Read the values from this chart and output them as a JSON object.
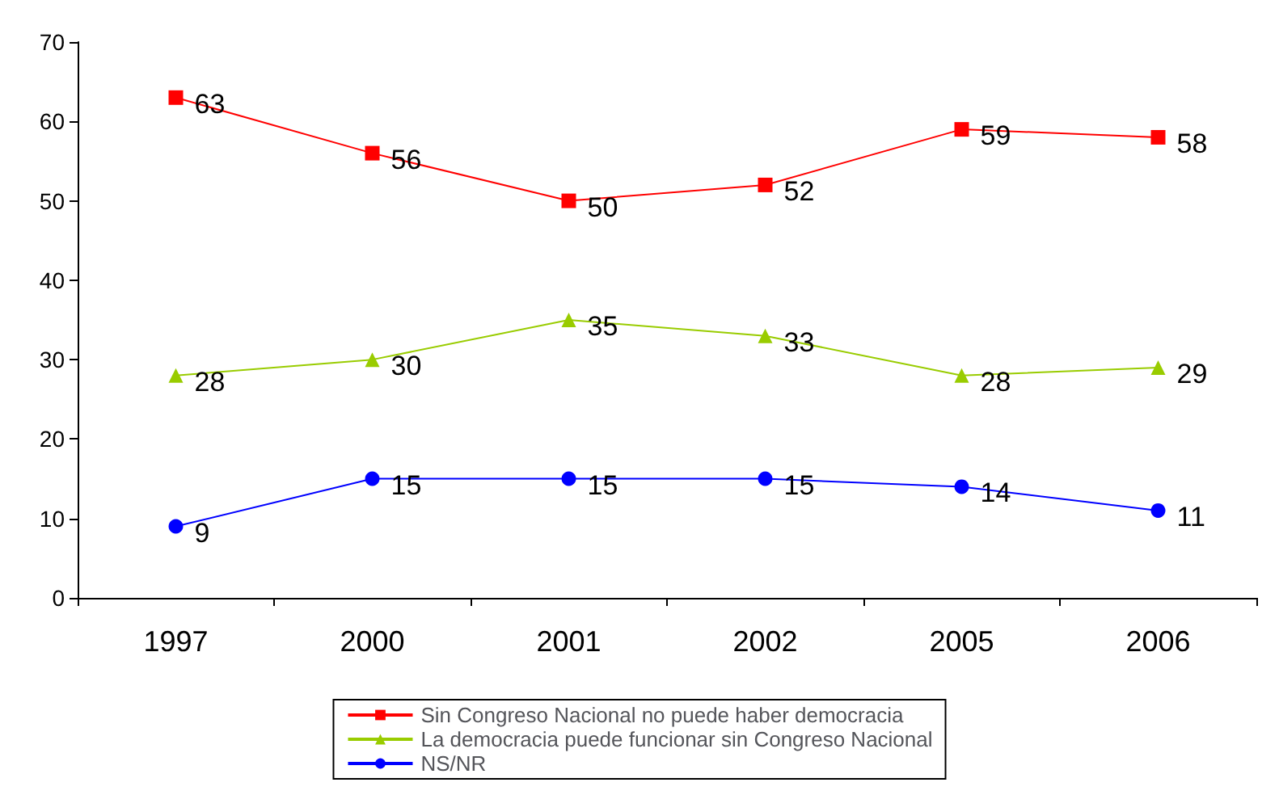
{
  "chart_data": {
    "type": "line",
    "categories": [
      "1997",
      "2000",
      "2001",
      "2002",
      "2005",
      "2006"
    ],
    "series": [
      {
        "name": "Sin Congreso Nacional no puede haber democracia",
        "color": "#ff0000",
        "marker": "square",
        "values": [
          63,
          56,
          50,
          52,
          59,
          58
        ]
      },
      {
        "name": "La democracia puede funcionar sin Congreso Nacional",
        "color": "#99cc00",
        "marker": "triangle",
        "values": [
          28,
          30,
          35,
          33,
          28,
          29
        ]
      },
      {
        "name": "NS/NR",
        "color": "#0000ff",
        "marker": "circle",
        "values": [
          9,
          15,
          15,
          15,
          14,
          11
        ]
      }
    ],
    "ylim": [
      0,
      70
    ],
    "yticks": [
      0,
      10,
      20,
      30,
      40,
      50,
      60,
      70
    ],
    "grid": false,
    "legend": "bottom",
    "data_labels": true
  }
}
